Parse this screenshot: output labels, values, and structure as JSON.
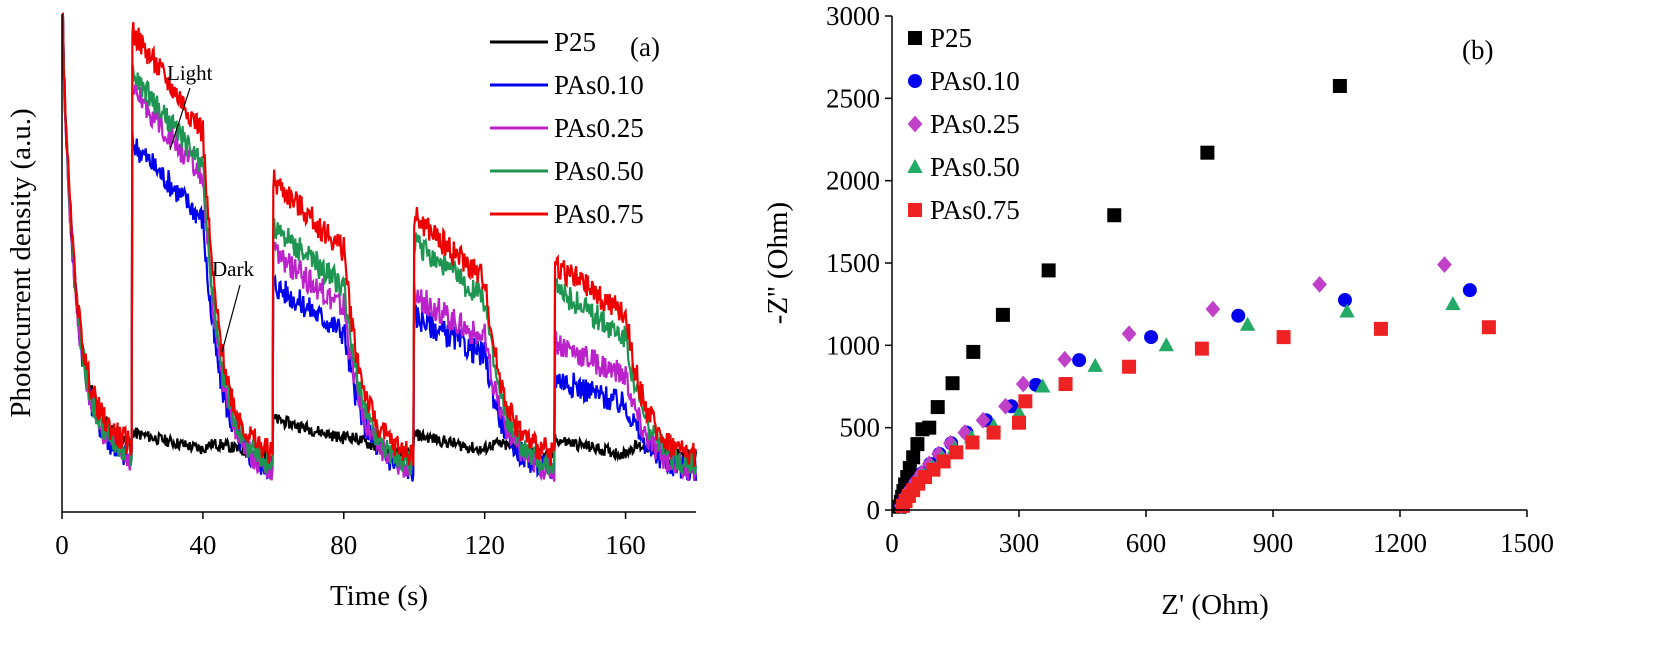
{
  "chart_data": [
    {
      "panel": "(a)",
      "type": "line",
      "xlabel": "Time (s)",
      "ylabel": "Photocurrent density (a.u.)",
      "xlim": [
        0,
        180
      ],
      "ylim": [
        0,
        100
      ],
      "xticks": [
        0,
        40,
        80,
        120,
        160
      ],
      "yticks_shown": false,
      "legend_position": "top-right",
      "annotations": [
        "Light",
        "Dark"
      ],
      "light_on_intervals": [
        [
          20,
          40
        ],
        [
          60,
          80
        ],
        [
          100,
          120
        ],
        [
          140,
          160
        ]
      ],
      "series": [
        {
          "name": "P25",
          "color": "#000000",
          "on_levels": [
            15,
            18,
            15,
            14
          ],
          "dark_level": 10,
          "start_level": 100
        },
        {
          "name": "PAs0.10",
          "color": "#0000ee",
          "on_levels": [
            70,
            44,
            38,
            26
          ],
          "dark_level": 7,
          "start_level": 100
        },
        {
          "name": "PAs0.25",
          "color": "#bb22cc",
          "on_levels": [
            80,
            50,
            42,
            33
          ],
          "dark_level": 7,
          "start_level": 100
        },
        {
          "name": "PAs0.50",
          "color": "#1e9652",
          "on_levels": [
            83,
            55,
            52,
            43
          ],
          "dark_level": 8,
          "start_level": 100
        },
        {
          "name": "PAs0.75",
          "color": "#ee0000",
          "on_levels": [
            91,
            64,
            57,
            48
          ],
          "dark_level": 10,
          "start_level": 100
        }
      ]
    },
    {
      "panel": "(b)",
      "type": "scatter",
      "xlabel": "Z' (Ohm)",
      "ylabel": "-Z'' (Ohm)",
      "xlim": [
        0,
        1500
      ],
      "ylim": [
        0,
        3000
      ],
      "xticks": [
        0,
        300,
        600,
        900,
        1200,
        1500
      ],
      "yticks": [
        0,
        500,
        1000,
        1500,
        2000,
        2500,
        3000
      ],
      "legend_position": "top-left",
      "series": [
        {
          "name": "P25",
          "color": "#000000",
          "marker": "square",
          "x": [
            18,
            21,
            24,
            27,
            31,
            36,
            42,
            50,
            60,
            72,
            88,
            108,
            143,
            192,
            262,
            370,
            525,
            745,
            1058
          ],
          "y": [
            20,
            50,
            80,
            115,
            155,
            200,
            255,
            320,
            400,
            490,
            500,
            625,
            770,
            960,
            1185,
            1455,
            1790,
            2170,
            2575
          ]
        },
        {
          "name": "PAs0.10",
          "color": "#0000ee",
          "marker": "circle",
          "x": [
            22,
            28,
            36,
            46,
            58,
            72,
            90,
            112,
            140,
            176,
            222,
            282,
            340,
            442,
            612,
            818,
            1070,
            1365
          ],
          "y": [
            25,
            55,
            90,
            130,
            175,
            225,
            280,
            340,
            405,
            470,
            545,
            630,
            760,
            910,
            1050,
            1180,
            1275,
            1335
          ]
        },
        {
          "name": "PAs0.25",
          "color": "#c040c8",
          "marker": "diamond",
          "x": [
            22,
            27,
            34,
            44,
            56,
            70,
            88,
            110,
            138,
            172,
            215,
            268,
            310,
            408,
            560,
            758,
            1010,
            1305
          ],
          "y": [
            25,
            55,
            90,
            130,
            175,
            225,
            280,
            340,
            405,
            470,
            545,
            630,
            765,
            915,
            1070,
            1220,
            1370,
            1490
          ]
        },
        {
          "name": "PAs0.50",
          "color": "#22aa66",
          "marker": "triangle",
          "x": [
            24,
            30,
            38,
            48,
            60,
            75,
            94,
            118,
            148,
            188,
            240,
            300,
            356,
            480,
            648,
            840,
            1075,
            1325
          ],
          "y": [
            25,
            55,
            88,
            125,
            165,
            210,
            260,
            315,
            375,
            440,
            510,
            590,
            750,
            875,
            1000,
            1125,
            1205,
            1250
          ]
        },
        {
          "name": "PAs0.75",
          "color": "#ee2222",
          "marker": "square",
          "x": [
            26,
            32,
            40,
            50,
            62,
            78,
            98,
            122,
            152,
            190,
            240,
            300,
            315,
            410,
            560,
            732,
            925,
            1155,
            1410
          ],
          "y": [
            25,
            55,
            85,
            120,
            160,
            200,
            245,
            295,
            350,
            410,
            470,
            530,
            660,
            765,
            870,
            980,
            1050,
            1100,
            1110
          ]
        }
      ]
    }
  ]
}
